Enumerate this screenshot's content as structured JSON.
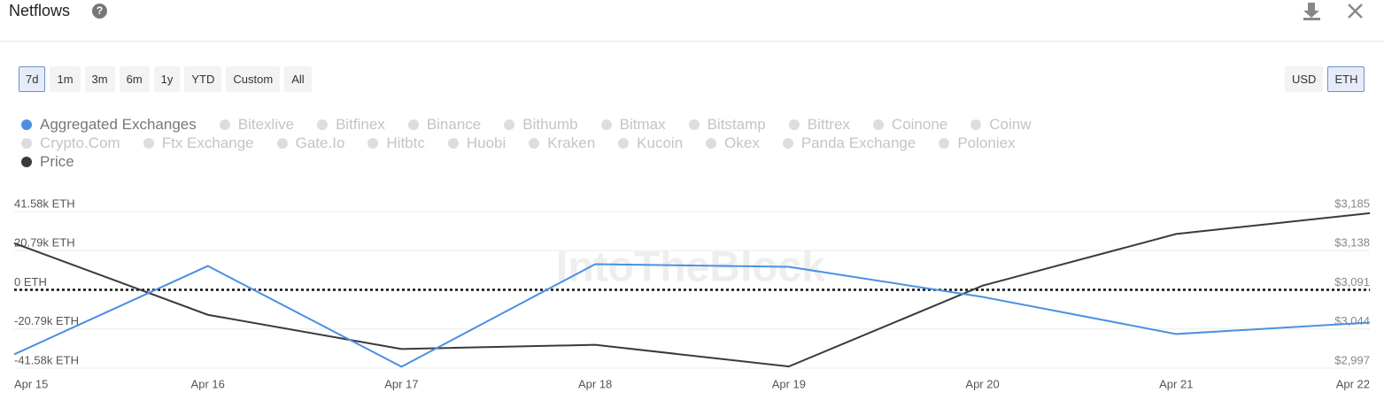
{
  "header": {
    "title": "Netflows"
  },
  "range_buttons": [
    "7d",
    "1m",
    "3m",
    "6m",
    "1y",
    "YTD",
    "Custom",
    "All"
  ],
  "selected_range_index": 0,
  "currency_buttons": [
    "USD",
    "ETH"
  ],
  "selected_currency_index": 1,
  "inactive_series": [
    "Bitexlive",
    "Bitfinex",
    "Binance",
    "Bithumb",
    "Bitmax",
    "Bitstamp",
    "Bittrex",
    "Coinone",
    "Coinw",
    "Crypto.Com",
    "Ftx Exchange",
    "Gate.Io",
    "Hitbtc",
    "Huobi",
    "Kraken",
    "Kucoin",
    "Okex",
    "Panda Exchange",
    "Poloniex"
  ],
  "chart_data": {
    "type": "line",
    "watermark": "IntoTheBlock",
    "categories": [
      "Apr 15",
      "Apr 16",
      "Apr 17",
      "Apr 18",
      "Apr 19",
      "Apr 20",
      "Apr 21",
      "Apr 22"
    ],
    "series": [
      {
        "name": "Aggregated Exchanges",
        "color": "#4a90e2",
        "values": [
          -34260,
          12670,
          -40830,
          13610,
          12200,
          -3750,
          -23460,
          -17360
        ]
      },
      {
        "name": "Price",
        "color": "#3a3a3c",
        "axis": "y2",
        "values": [
          3147,
          3061,
          3020,
          3025,
          2999,
          3096,
          3158,
          3183
        ]
      }
    ],
    "ylim": [
      -41580,
      41580
    ],
    "yticks": [
      {
        "value": 41580,
        "label": "41.58k ETH"
      },
      {
        "value": 20790,
        "label": "20.79k ETH"
      },
      {
        "value": 0,
        "label": "0 ETH"
      },
      {
        "value": -20790,
        "label": "-20.79k ETH"
      },
      {
        "value": -41580,
        "label": "-41.58k ETH"
      }
    ],
    "y2lim": [
      2997,
      3185
    ],
    "y2ticks": [
      {
        "value": 3185,
        "label": "$3,185"
      },
      {
        "value": 3138,
        "label": "$3,138"
      },
      {
        "value": 3091,
        "label": "$3,091"
      },
      {
        "value": 3044,
        "label": "$3,044"
      },
      {
        "value": 2997,
        "label": "$2,997"
      }
    ],
    "grid": true
  }
}
